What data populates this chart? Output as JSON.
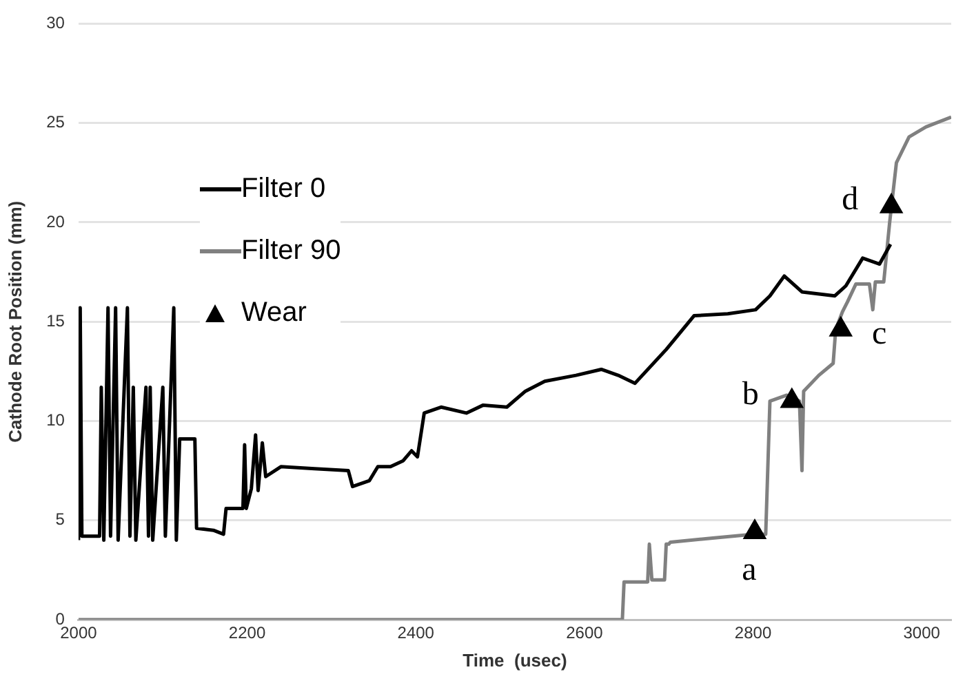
{
  "chart_data": {
    "type": "line",
    "xlabel": "Time  (usec)",
    "ylabel": "Cathode Root Position (mm)",
    "xlim": [
      2000,
      3035
    ],
    "xticks": [
      2000,
      2200,
      2400,
      2600,
      2800,
      3000
    ],
    "ylim": [
      0,
      30
    ],
    "yticks": [
      0,
      5,
      10,
      15,
      20,
      25,
      30
    ],
    "grid": "y",
    "legend": "top left",
    "series": [
      {
        "name": "Filter 0",
        "color": "#000000",
        "line_style": "solid",
        "x": [
          2000,
          2002,
          2004,
          2025,
          2027,
          2030,
          2035,
          2038,
          2044,
          2047,
          2058,
          2061,
          2065,
          2068,
          2080,
          2083,
          2085,
          2088,
          2100,
          2103,
          2113,
          2116,
          2120,
          2138,
          2140,
          2160,
          2172,
          2175,
          2195,
          2197,
          2199,
          2205,
          2210,
          2213,
          2218,
          2222,
          2240,
          2280,
          2320,
          2325,
          2345,
          2355,
          2370,
          2385,
          2395,
          2402,
          2410,
          2430,
          2460,
          2480,
          2508,
          2530,
          2553,
          2590,
          2620,
          2640,
          2660,
          2697,
          2730,
          2770,
          2803,
          2820,
          2837,
          2858,
          2897,
          2910,
          2930,
          2950,
          2963
        ],
        "values": [
          4.0,
          15.7,
          4.2,
          4.2,
          11.7,
          4.0,
          15.7,
          4.2,
          15.7,
          4.0,
          15.7,
          4.2,
          11.7,
          4.0,
          11.7,
          4.2,
          11.7,
          4.0,
          11.7,
          4.2,
          15.7,
          4.0,
          9.1,
          9.1,
          4.6,
          4.5,
          4.3,
          5.6,
          5.6,
          8.8,
          5.6,
          6.6,
          9.3,
          6.5,
          8.9,
          7.2,
          7.7,
          7.6,
          7.5,
          6.7,
          7.0,
          7.7,
          7.7,
          8.0,
          8.5,
          8.2,
          10.4,
          10.7,
          10.4,
          10.8,
          10.7,
          11.5,
          12.0,
          12.3,
          12.6,
          12.3,
          11.9,
          13.6,
          15.3,
          15.4,
          15.6,
          16.3,
          17.3,
          16.5,
          16.3,
          16.8,
          18.2,
          17.9,
          18.9
        ]
      },
      {
        "name": "Filter 90",
        "color": "#808080",
        "line_style": "solid",
        "x": [
          2000,
          2645,
          2647,
          2675,
          2677,
          2680,
          2695,
          2697,
          2700,
          2702,
          2750,
          2800,
          2815,
          2820,
          2840,
          2855,
          2858,
          2860,
          2878,
          2895,
          2898,
          2906,
          2912,
          2922,
          2938,
          2942,
          2945,
          2955,
          2962,
          2970,
          2985,
          3005,
          3035
        ],
        "values": [
          0,
          0,
          1.9,
          1.9,
          3.8,
          2.0,
          2.0,
          3.8,
          3.8,
          3.9,
          4.1,
          4.3,
          4.3,
          11.0,
          11.3,
          11.0,
          7.5,
          11.5,
          12.3,
          12.9,
          14.6,
          15.5,
          16.0,
          16.9,
          16.9,
          15.6,
          17.0,
          17.0,
          20.0,
          23.0,
          24.3,
          24.8,
          25.3
        ]
      },
      {
        "name": "Wear",
        "type": "scatter",
        "color": "#000000",
        "marker": "triangle",
        "x": [
          2802,
          2846,
          2904,
          2964
        ],
        "values": [
          4.4,
          11.0,
          14.6,
          20.8
        ]
      }
    ],
    "annotations": [
      {
        "text": "a",
        "x": 2802,
        "y": 4.4
      },
      {
        "text": "b",
        "x": 2846,
        "y": 11.0
      },
      {
        "text": "c",
        "x": 2904,
        "y": 14.6
      },
      {
        "text": "d",
        "x": 2964,
        "y": 20.8
      }
    ]
  }
}
